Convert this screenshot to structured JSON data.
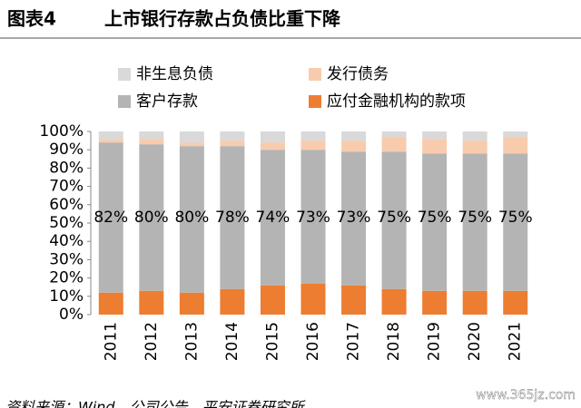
{
  "chart_data": {
    "type": "stacked_bar",
    "title_label": "图表4",
    "title": "上市银行存款占负债比重下降",
    "categories": [
      "2011",
      "2012",
      "2013",
      "2014",
      "2015",
      "2016",
      "2017",
      "2018",
      "2019",
      "2020",
      "2021"
    ],
    "series": [
      {
        "name": "非生息负债",
        "color": "#d9d9d9",
        "values": [
          4,
          4,
          6,
          5,
          6,
          5,
          5,
          3,
          4,
          5,
          3
        ]
      },
      {
        "name": "发行债务",
        "color": "#f8cbad",
        "values": [
          2,
          3,
          2,
          3,
          4,
          5,
          6,
          8,
          8,
          7,
          9
        ]
      },
      {
        "name": "客户存款",
        "color": "#b4b4b4",
        "values": [
          82,
          80,
          80,
          78,
          74,
          73,
          73,
          75,
          75,
          75,
          75
        ],
        "value_labels": [
          "82%",
          "80%",
          "80%",
          "78%",
          "74%",
          "73%",
          "73%",
          "75%",
          "75%",
          "75%",
          "75%"
        ]
      },
      {
        "name": "应付金融机构的款项",
        "color": "#ed7d31",
        "values": [
          12,
          13,
          12,
          14,
          16,
          17,
          16,
          14,
          13,
          13,
          13
        ]
      }
    ],
    "ylim": [
      0,
      100
    ],
    "yticks": [
      {
        "value": 0,
        "label": "0%"
      },
      {
        "value": 10,
        "label": "10%"
      },
      {
        "value": 20,
        "label": "20%"
      },
      {
        "value": 30,
        "label": "30%"
      },
      {
        "value": 40,
        "label": "40%"
      },
      {
        "value": 50,
        "label": "50%"
      },
      {
        "value": 60,
        "label": "60%"
      },
      {
        "value": 70,
        "label": "70%"
      },
      {
        "value": 80,
        "label": "80%"
      },
      {
        "value": 90,
        "label": "90%"
      },
      {
        "value": 100,
        "label": "100%"
      }
    ],
    "source": "资料来源：Wind，公司公告，平安证券研究所",
    "watermark": "www.365jz.com"
  }
}
